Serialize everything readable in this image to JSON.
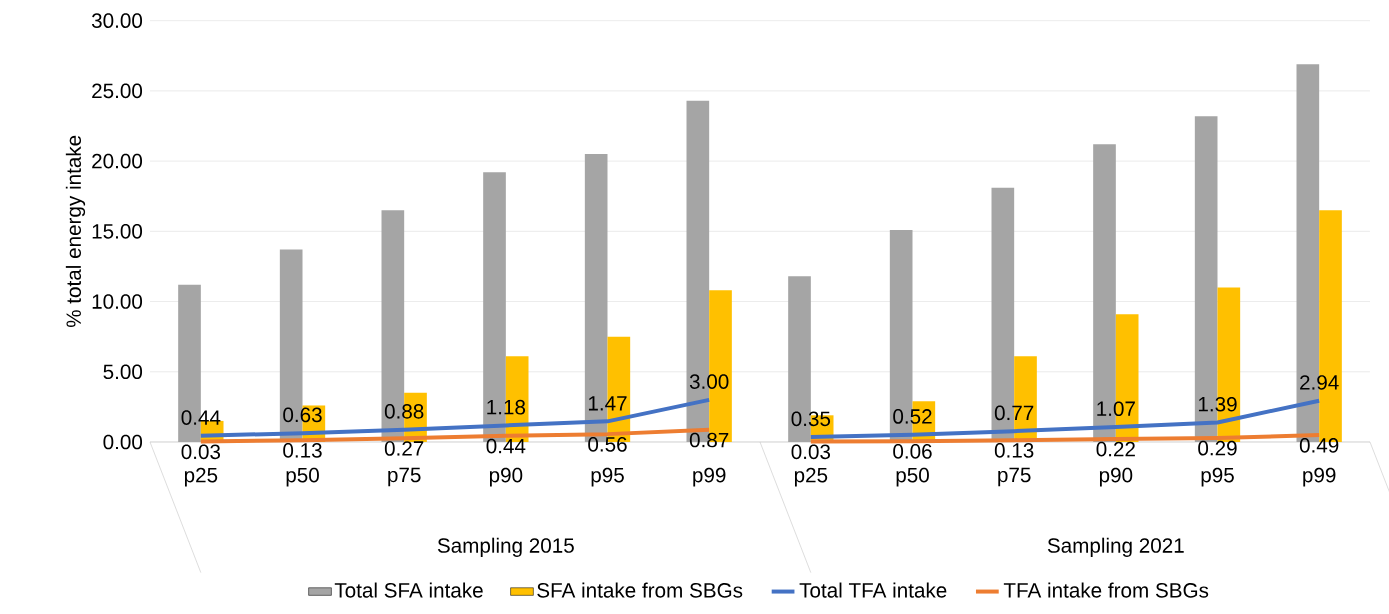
{
  "chart_data": {
    "type": "bar",
    "ylabel": "% total energy intake",
    "categories": [
      "p25",
      "p50",
      "p75",
      "p90",
      "p95",
      "p99",
      "p25",
      "p50",
      "p75",
      "p90",
      "p95",
      "p99"
    ],
    "series": [
      {
        "name": "Total SFA intake",
        "color": "#a5a5a5",
        "values": [
          11.2,
          13.7,
          16.5,
          19.2,
          20.5,
          24.3,
          11.8,
          15.1,
          18.1,
          21.2,
          23.2,
          26.9
        ]
      },
      {
        "name": "SFA intake from SBGs",
        "color": "#ffc000",
        "values": [
          1.5,
          2.6,
          3.5,
          6.1,
          7.5,
          10.8,
          1.9,
          2.9,
          6.1,
          9.1,
          11.0,
          16.5
        ]
      },
      {
        "name": "Total TFA intake",
        "type": "line",
        "color": "#4472c4",
        "values": [
          0.44,
          0.63,
          0.88,
          1.18,
          1.47,
          3.0,
          0.35,
          0.52,
          0.77,
          1.07,
          1.39,
          2.94
        ],
        "value_labels": [
          "0.44",
          "0.63",
          "0.88",
          "1.18",
          "1.47",
          "3.00",
          "0.35",
          "0.52",
          "0.77",
          "1.07",
          "1.39",
          "2.94"
        ]
      },
      {
        "name": "TFA intake from SBGs",
        "type": "line",
        "color": "#ed7d31",
        "values": [
          0.03,
          0.13,
          0.27,
          0.44,
          0.56,
          0.87,
          0.03,
          0.06,
          0.13,
          0.22,
          0.29,
          0.49
        ],
        "value_labels": [
          "0.03",
          "0.13",
          "0.27",
          "0.44",
          "0.56",
          "0.87",
          "0.03",
          "0.06",
          "0.13",
          "0.22",
          "0.29",
          "0.49"
        ]
      }
    ],
    "annotations": [
      "Sampling 2015",
      "Sampling 2021"
    ],
    "ylim": [
      0,
      30
    ],
    "yticks": [
      {
        "value": 0,
        "label": "0.00"
      },
      {
        "value": 5,
        "label": "5.00"
      },
      {
        "value": 10,
        "label": "10.00"
      },
      {
        "value": 15,
        "label": "15.00"
      },
      {
        "value": 20,
        "label": "20.00"
      },
      {
        "value": 25,
        "label": "25.00"
      },
      {
        "value": 30,
        "label": "30.00"
      }
    ],
    "grid": "y",
    "legend": "bottom"
  }
}
